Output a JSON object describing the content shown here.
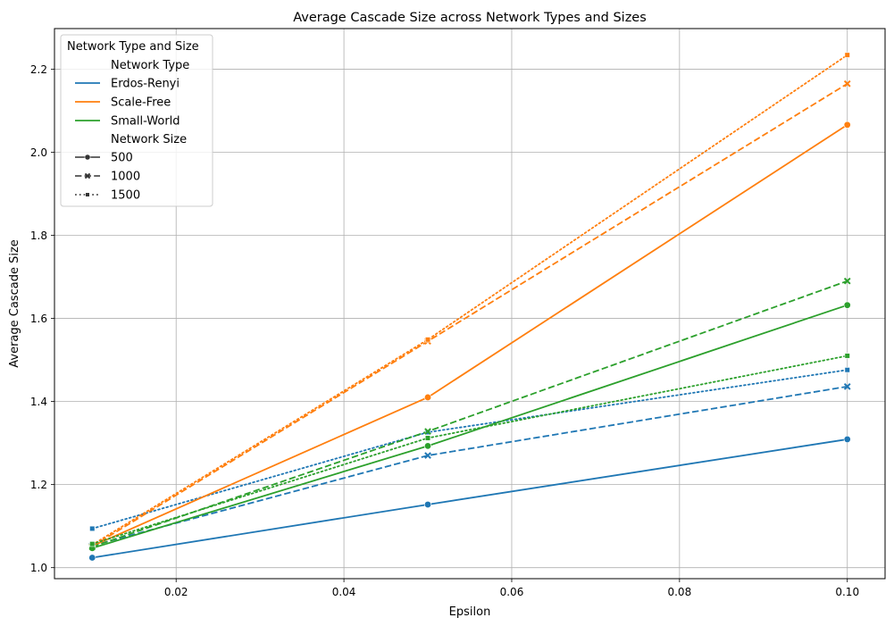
{
  "chart_data": {
    "type": "line",
    "title": "Average Cascade Size across Network Types and Sizes",
    "xlabel": "Epsilon",
    "ylabel": "Average Cascade Size",
    "x": [
      0.01,
      0.05,
      0.1
    ],
    "xlim": [
      0.0055,
      0.1045
    ],
    "ylim": [
      0.9735,
      2.2977
    ],
    "x_ticks": [
      0.02,
      0.04,
      0.06,
      0.08,
      0.1
    ],
    "x_tick_labels": [
      "0.02",
      "0.04",
      "0.06",
      "0.08",
      "0.10"
    ],
    "y_ticks": [
      1.0,
      1.2,
      1.4,
      1.6,
      1.8,
      2.0,
      2.2
    ],
    "y_tick_labels": [
      "1.0",
      "1.2",
      "1.4",
      "1.6",
      "1.8",
      "2.0",
      "2.2"
    ],
    "grid": true,
    "legend": {
      "placement": "top-left",
      "title": "Network Type and Size",
      "type_header": "Network Type",
      "size_header": "Network Size",
      "types": [
        {
          "name": "Erdos-Renyi",
          "color": "#1f77b4"
        },
        {
          "name": "Scale-Free",
          "color": "#ff7f0e"
        },
        {
          "name": "Small-World",
          "color": "#2ca02c"
        }
      ],
      "sizes": [
        {
          "name": "500",
          "dash": "solid",
          "marker": "circle"
        },
        {
          "name": "1000",
          "dash": "dashed",
          "marker": "x"
        },
        {
          "name": "1500",
          "dash": "dotted",
          "marker": "square"
        }
      ]
    },
    "series": [
      {
        "type": "Erdos-Renyi",
        "size": "500",
        "color": "#1f77b4",
        "dash": "solid",
        "marker": "circle",
        "values": [
          1.024,
          1.152,
          1.309
        ]
      },
      {
        "type": "Erdos-Renyi",
        "size": "1000",
        "color": "#1f77b4",
        "dash": "dashed",
        "marker": "x",
        "values": [
          1.053,
          1.27,
          1.436
        ]
      },
      {
        "type": "Erdos-Renyi",
        "size": "1500",
        "color": "#1f77b4",
        "dash": "dotted",
        "marker": "square",
        "values": [
          1.094,
          1.326,
          1.476
        ]
      },
      {
        "type": "Scale-Free",
        "size": "500",
        "color": "#ff7f0e",
        "dash": "solid",
        "marker": "circle",
        "values": [
          1.052,
          1.41,
          2.066
        ]
      },
      {
        "type": "Scale-Free",
        "size": "1000",
        "color": "#ff7f0e",
        "dash": "dashed",
        "marker": "x",
        "values": [
          1.051,
          1.545,
          2.165
        ]
      },
      {
        "type": "Scale-Free",
        "size": "1500",
        "color": "#ff7f0e",
        "dash": "dotted",
        "marker": "square",
        "values": [
          1.055,
          1.549,
          2.234
        ]
      },
      {
        "type": "Small-World",
        "size": "500",
        "color": "#2ca02c",
        "dash": "solid",
        "marker": "circle",
        "values": [
          1.047,
          1.293,
          1.632
        ]
      },
      {
        "type": "Small-World",
        "size": "1000",
        "color": "#2ca02c",
        "dash": "dashed",
        "marker": "x",
        "values": [
          1.05,
          1.328,
          1.69
        ]
      },
      {
        "type": "Small-World",
        "size": "1500",
        "color": "#2ca02c",
        "dash": "dotted",
        "marker": "square",
        "values": [
          1.057,
          1.312,
          1.51
        ]
      }
    ]
  }
}
